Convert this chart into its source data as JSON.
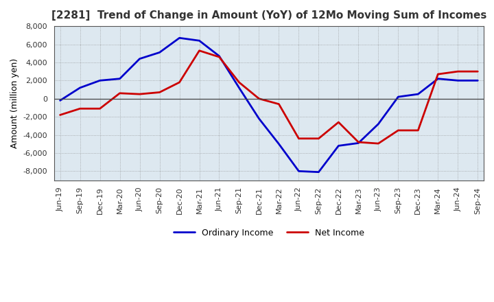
{
  "title": "[2281]  Trend of Change in Amount (YoY) of 12Mo Moving Sum of Incomes",
  "ylabel": "Amount (million yen)",
  "x_labels": [
    "Jun-19",
    "Sep-19",
    "Dec-19",
    "Mar-20",
    "Jun-20",
    "Sep-20",
    "Dec-20",
    "Mar-21",
    "Jun-21",
    "Sep-21",
    "Dec-21",
    "Mar-22",
    "Jun-22",
    "Sep-22",
    "Dec-22",
    "Mar-23",
    "Jun-23",
    "Sep-23",
    "Dec-23",
    "Mar-24",
    "Jun-24",
    "Sep-24"
  ],
  "ordinary_income": [
    -200,
    1200,
    2000,
    2200,
    4400,
    5100,
    6700,
    6400,
    4700,
    1200,
    -2200,
    -5000,
    -8000,
    -8100,
    -5200,
    -4900,
    -2800,
    200,
    500,
    2200,
    2000,
    2000
  ],
  "net_income": [
    -1800,
    -1100,
    -1100,
    600,
    500,
    700,
    1800,
    5300,
    4600,
    1800,
    0,
    -600,
    -4400,
    -4400,
    -2600,
    -4800,
    -4950,
    -3500,
    -3500,
    2700,
    3000,
    3000
  ],
  "ordinary_color": "#0000cc",
  "net_color": "#cc0000",
  "ylim": [
    -9000,
    8000
  ],
  "yticks": [
    -8000,
    -6000,
    -4000,
    -2000,
    0,
    2000,
    4000,
    6000,
    8000
  ],
  "plot_bg_color": "#dde8f0",
  "fig_bg_color": "#ffffff",
  "grid_color": "#888888",
  "line_width": 2.0,
  "legend_labels": [
    "Ordinary Income",
    "Net Income"
  ]
}
